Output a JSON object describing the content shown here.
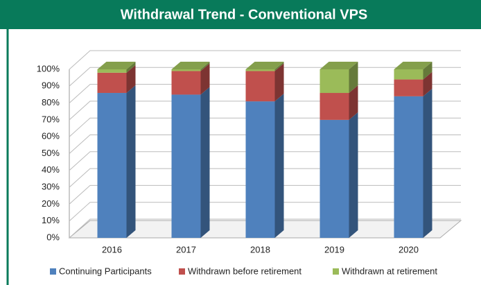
{
  "chart_data": {
    "type": "stacked-bar-3d",
    "title": "Withdrawal Trend - Conventional VPS",
    "categories": [
      "2016",
      "2017",
      "2018",
      "2019",
      "2020"
    ],
    "series": [
      {
        "name": "Continuing Participants",
        "color": "#4f81bd",
        "values": [
          86,
          85,
          81,
          70,
          84
        ]
      },
      {
        "name": "Withdrawn before retirement",
        "color": "#c0504d",
        "values": [
          12,
          14,
          18,
          16,
          10
        ]
      },
      {
        "name": "Withdrawn at retirement",
        "color": "#9bbb59",
        "values": [
          2,
          1,
          1,
          14,
          6
        ]
      }
    ],
    "ylim": [
      0,
      100
    ],
    "yticks": [
      {
        "value": 0,
        "label": "0%"
      },
      {
        "value": 10,
        "label": "10%"
      },
      {
        "value": 20,
        "label": "20%"
      },
      {
        "value": 30,
        "label": "30%"
      },
      {
        "value": 40,
        "label": "40%"
      },
      {
        "value": 50,
        "label": "50%"
      },
      {
        "value": 60,
        "label": "60%"
      },
      {
        "value": 70,
        "label": "70%"
      },
      {
        "value": 80,
        "label": "80%"
      },
      {
        "value": 90,
        "label": "90%"
      },
      {
        "value": 100,
        "label": "100%"
      }
    ],
    "grid": true,
    "legend": "bottom"
  }
}
